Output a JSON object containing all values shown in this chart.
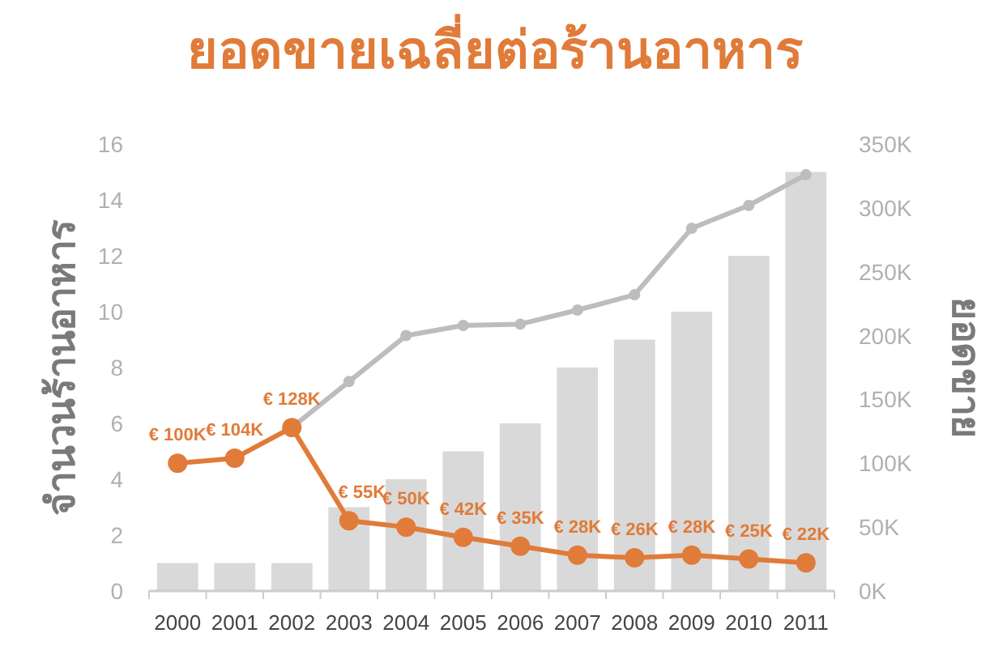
{
  "chart_data": {
    "type": "bar",
    "title": "ยอดขายเฉลี่ยต่อร้านอาหาร",
    "ylabel": "จำนวนร้านอาหาร",
    "y2label": "ยอดขาย",
    "categories": [
      "2000",
      "2001",
      "2002",
      "2003",
      "2004",
      "2005",
      "2006",
      "2007",
      "2008",
      "2009",
      "2010",
      "2011"
    ],
    "ylim": [
      0,
      16
    ],
    "yticks": [
      0,
      2,
      4,
      6,
      8,
      10,
      12,
      14,
      16
    ],
    "y2lim": [
      0,
      350
    ],
    "y2ticks": [
      {
        "value": 0,
        "label": "0K"
      },
      {
        "value": 50,
        "label": "50K"
      },
      {
        "value": 100,
        "label": "100K"
      },
      {
        "value": 150,
        "label": "150K"
      },
      {
        "value": 200,
        "label": "200K"
      },
      {
        "value": 250,
        "label": "250K"
      },
      {
        "value": 300,
        "label": "300K"
      },
      {
        "value": 350,
        "label": "350K"
      }
    ],
    "series": [
      {
        "color": "#d9d9d9",
        "values": [
          1,
          1,
          1,
          3,
          4,
          5,
          6,
          8,
          9,
          10,
          12,
          15
        ]
      },
      {
        "type": "line",
        "axis": "y2",
        "color": "#bdbdbd",
        "values": [
          null,
          null,
          128,
          164,
          200,
          208,
          209,
          220,
          232,
          284,
          302,
          326
        ]
      },
      {
        "type": "line",
        "axis": "y2",
        "color": "#e07b39",
        "values": [
          100,
          104,
          128,
          55,
          50,
          42,
          35,
          28,
          26,
          28,
          25,
          22
        ],
        "value_labels": [
          "€ 100K",
          "€ 104K",
          "€ 128K",
          "€ 55K",
          "€ 50K",
          "€ 42K",
          "€ 35K",
          "€ 28K",
          "€ 26K",
          "€ 28K",
          "€ 25K",
          "€ 22K"
        ]
      }
    ],
    "marker": "circle",
    "grid": false
  }
}
